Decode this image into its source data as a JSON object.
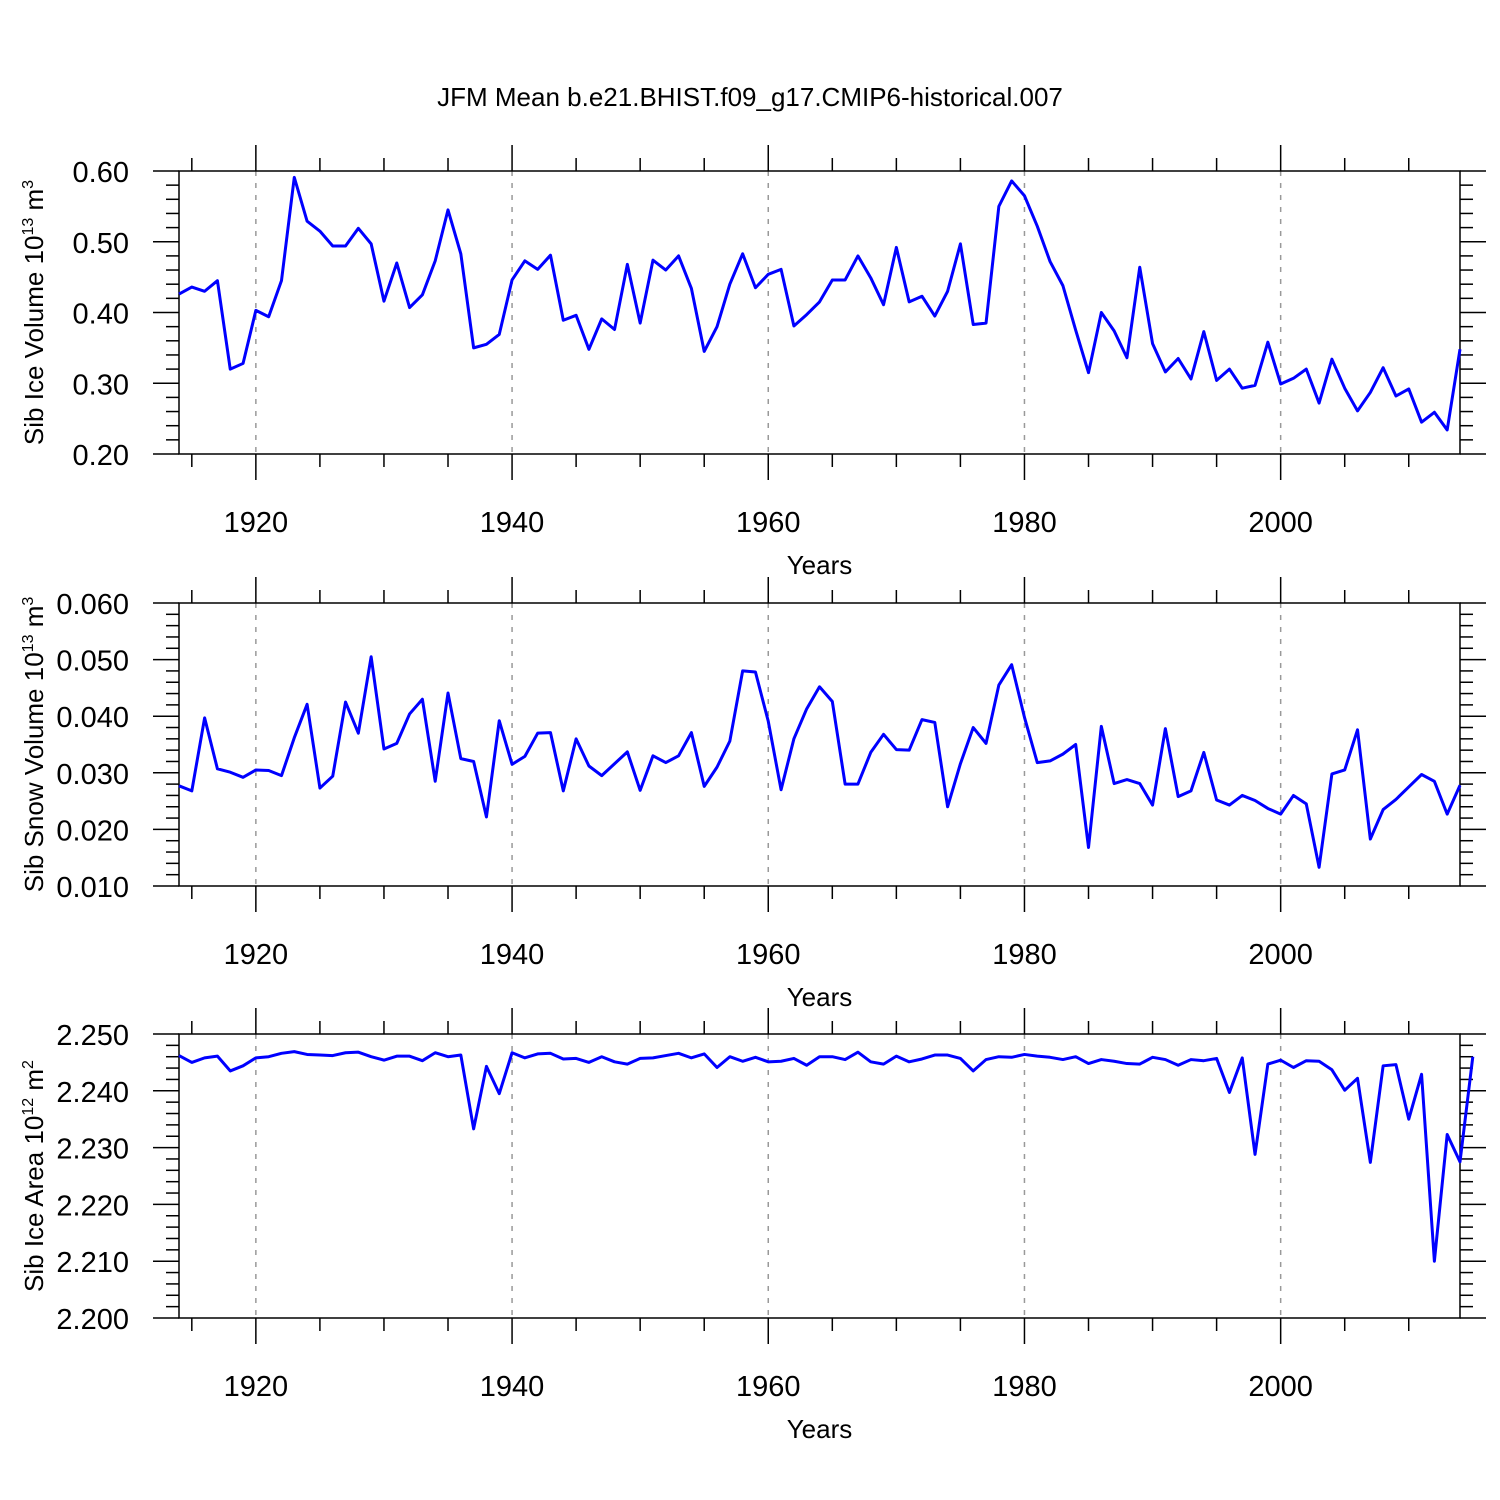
{
  "figure_title": "JFM Mean b.e21.BHIST.f09_g17.CMIP6-historical.007",
  "colors": {
    "series": "#0000ff",
    "frame": "#000000",
    "grid": "#999999"
  },
  "chart_data": [
    {
      "type": "line",
      "title": "JFM Mean b.e21.BHIST.f09_g17.CMIP6-historical.007",
      "ylabel_main": "Sib Ice Volume 10",
      "ylabel_sup": "13",
      "ylabel_unit": " m",
      "ylabel_unit_sup": "3",
      "xlabel": "Years",
      "xlim": [
        1914,
        2014
      ],
      "ylim": [
        0.2,
        0.6
      ],
      "xticks": [
        1920,
        1940,
        1960,
        1980,
        2000
      ],
      "xtick_labels": [
        "1920",
        "1940",
        "1960",
        "1980",
        "2000"
      ],
      "yticks": [
        0.2,
        0.3,
        0.4,
        0.5,
        0.6
      ],
      "ytick_labels": [
        "0.20",
        "0.30",
        "0.40",
        "0.50",
        "0.60"
      ],
      "grid": "dashed vertical at major x ticks",
      "series": [
        {
          "name": "Sib Ice Volume",
          "x_start": 1914,
          "values": [
            0.426,
            0.436,
            0.43,
            0.445,
            0.32,
            0.328,
            0.403,
            0.394,
            0.445,
            0.591,
            0.529,
            0.515,
            0.494,
            0.494,
            0.519,
            0.497,
            0.416,
            0.47,
            0.407,
            0.425,
            0.473,
            0.545,
            0.483,
            0.35,
            0.355,
            0.369,
            0.446,
            0.473,
            0.461,
            0.481,
            0.389,
            0.396,
            0.348,
            0.391,
            0.376,
            0.468,
            0.385,
            0.474,
            0.46,
            0.48,
            0.434,
            0.345,
            0.38,
            0.44,
            0.483,
            0.435,
            0.454,
            0.461,
            0.381,
            0.397,
            0.415,
            0.446,
            0.446,
            0.48,
            0.449,
            0.411,
            0.492,
            0.415,
            0.423,
            0.395,
            0.43,
            0.497,
            0.383,
            0.385,
            0.55,
            0.586,
            0.565,
            0.522,
            0.472,
            0.438,
            0.375,
            0.315,
            0.4,
            0.374,
            0.336,
            0.464,
            0.356,
            0.316,
            0.335,
            0.306,
            0.373,
            0.304,
            0.32,
            0.293,
            0.297,
            0.358,
            0.299,
            0.307,
            0.32,
            0.272,
            0.334,
            0.293,
            0.261,
            0.287,
            0.322,
            0.282,
            0.292,
            0.245,
            0.259,
            0.234,
            0.348
          ]
        }
      ]
    },
    {
      "type": "line",
      "ylabel_main": "Sib Snow Volume 10",
      "ylabel_sup": "13",
      "ylabel_unit": " m",
      "ylabel_unit_sup": "3",
      "xlabel": "Years",
      "xlim": [
        1914,
        2014
      ],
      "ylim": [
        0.01,
        0.06
      ],
      "xticks": [
        1920,
        1940,
        1960,
        1980,
        2000
      ],
      "xtick_labels": [
        "1920",
        "1940",
        "1960",
        "1980",
        "2000"
      ],
      "yticks": [
        0.01,
        0.02,
        0.03,
        0.04,
        0.05,
        0.06
      ],
      "ytick_labels": [
        "0.010",
        "0.020",
        "0.030",
        "0.040",
        "0.050",
        "0.060"
      ],
      "grid": "dashed vertical at major x ticks",
      "series": [
        {
          "name": "Sib Snow Volume",
          "x_start": 1914,
          "values": [
            0.0277,
            0.0268,
            0.0397,
            0.0307,
            0.0301,
            0.0292,
            0.0305,
            0.0304,
            0.0295,
            0.0362,
            0.0421,
            0.0273,
            0.0294,
            0.0425,
            0.037,
            0.0505,
            0.0342,
            0.0352,
            0.0404,
            0.043,
            0.0285,
            0.0441,
            0.0325,
            0.032,
            0.0222,
            0.0392,
            0.0315,
            0.0329,
            0.037,
            0.0371,
            0.0268,
            0.036,
            0.0312,
            0.0295,
            0.0316,
            0.0337,
            0.0269,
            0.033,
            0.0318,
            0.033,
            0.0371,
            0.0276,
            0.031,
            0.0356,
            0.048,
            0.0478,
            0.0391,
            0.027,
            0.036,
            0.0413,
            0.0452,
            0.0426,
            0.028,
            0.028,
            0.0336,
            0.0368,
            0.0341,
            0.034,
            0.0394,
            0.0389,
            0.024,
            0.0316,
            0.038,
            0.0352,
            0.0455,
            0.0491,
            0.0398,
            0.0318,
            0.0321,
            0.0333,
            0.035,
            0.0168,
            0.0382,
            0.0281,
            0.0288,
            0.0281,
            0.0243,
            0.0378,
            0.0258,
            0.0268,
            0.0336,
            0.0252,
            0.0243,
            0.026,
            0.0251,
            0.0237,
            0.0227,
            0.026,
            0.0245,
            0.0133,
            0.0298,
            0.0305,
            0.0376,
            0.0183,
            0.0235,
            0.0253,
            0.0275,
            0.0297,
            0.0285,
            0.0227,
            0.0278
          ]
        }
      ]
    },
    {
      "type": "line",
      "ylabel_main": "Sib Ice Area 10",
      "ylabel_sup": "12",
      "ylabel_unit": " m",
      "ylabel_unit_sup": "2",
      "xlabel": "Years",
      "xlim": [
        1914,
        2014
      ],
      "ylim": [
        2.2,
        2.25
      ],
      "xticks": [
        1920,
        1940,
        1960,
        1980,
        2000
      ],
      "xtick_labels": [
        "1920",
        "1940",
        "1960",
        "1980",
        "2000"
      ],
      "yticks": [
        2.2,
        2.21,
        2.22,
        2.23,
        2.24,
        2.25
      ],
      "ytick_labels": [
        "2.200",
        "2.210",
        "2.220",
        "2.230",
        "2.240",
        "2.250"
      ],
      "grid": "dashed vertical at major x ticks",
      "series": [
        {
          "name": "Sib Ice Area",
          "x_start": 1914,
          "values": [
            2.2462,
            2.245,
            2.2458,
            2.2461,
            2.2435,
            2.2444,
            2.2458,
            2.246,
            2.2466,
            2.2469,
            2.2464,
            2.2463,
            2.2462,
            2.2467,
            2.2468,
            2.246,
            2.2454,
            2.2461,
            2.2461,
            2.2453,
            2.2467,
            2.246,
            2.2463,
            2.2333,
            2.2443,
            2.2395,
            2.2467,
            2.2458,
            2.2465,
            2.2466,
            2.2456,
            2.2457,
            2.245,
            2.246,
            2.2451,
            2.2447,
            2.2457,
            2.2458,
            2.2462,
            2.2466,
            2.2458,
            2.2465,
            2.2441,
            2.246,
            2.2452,
            2.2459,
            2.2451,
            2.2452,
            2.2457,
            2.2445,
            2.246,
            2.246,
            2.2455,
            2.2468,
            2.2451,
            2.2447,
            2.2461,
            2.2451,
            2.2456,
            2.2463,
            2.2463,
            2.2457,
            2.2435,
            2.2455,
            2.246,
            2.2459,
            2.2464,
            2.2461,
            2.2459,
            2.2455,
            2.246,
            2.2448,
            2.2455,
            2.2452,
            2.2448,
            2.2447,
            2.2459,
            2.2455,
            2.2445,
            2.2455,
            2.2453,
            2.2457,
            2.2397,
            2.2458,
            2.2288,
            2.2447,
            2.2454,
            2.2441,
            2.2453,
            2.2452,
            2.2437,
            2.2401,
            2.2422,
            2.2274,
            2.2444,
            2.2446,
            2.235,
            2.2429,
            2.21,
            2.2323,
            2.2275,
            2.246
          ]
        }
      ]
    }
  ]
}
